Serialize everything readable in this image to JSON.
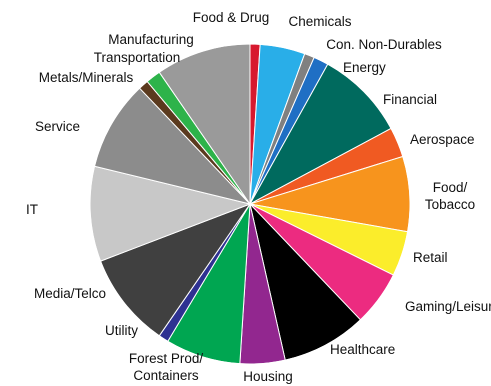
{
  "chart_data": {
    "type": "pie",
    "title": "",
    "legend": "none",
    "start": "top",
    "direction": "clockwise",
    "slices": [
      {
        "label": "Food & Drug",
        "value": 1.0,
        "color": "#d7192e"
      },
      {
        "label": "Chemicals",
        "value": 4.5,
        "color": "#29aee8"
      },
      {
        "label": "Con. Non-Durables",
        "value": 1.0,
        "color": "#808080"
      },
      {
        "label": "Energy",
        "value": 1.5,
        "color": "#1f6fc4"
      },
      {
        "label": "Financial",
        "value": 9.0,
        "color": "#006a5e"
      },
      {
        "label": "Aerospace",
        "value": 3.0,
        "color": "#f05a22"
      },
      {
        "label": "Food/ Tobacco",
        "label_lines": [
          "Food/",
          "Tobacco"
        ],
        "value": 7.5,
        "color": "#f7941d"
      },
      {
        "label": "Retail",
        "value": 4.5,
        "color": "#fbed2b"
      },
      {
        "label": "Gaming/Leisure",
        "value": 5.5,
        "color": "#ec2b80"
      },
      {
        "label": "Healthcare",
        "value": 8.5,
        "color": "#000000"
      },
      {
        "label": "Housing",
        "value": 4.5,
        "color": "#92278f"
      },
      {
        "label": "Forest Prod/ Containers",
        "label_lines": [
          "Forest Prod/",
          "Containers"
        ],
        "value": 7.5,
        "color": "#00a651"
      },
      {
        "label": "Utility",
        "value": 1.0,
        "color": "#2e3192"
      },
      {
        "label": "Media/Telco",
        "value": 9.5,
        "color": "#404040"
      },
      {
        "label": "IT",
        "value": 9.5,
        "color": "#c8c8c8"
      },
      {
        "label": "Service",
        "value": 9.0,
        "color": "#8c8c8c"
      },
      {
        "label": "Metals/Minerals",
        "value": 1.0,
        "color": "#5b3a1e"
      },
      {
        "label": "Transportation",
        "value": 1.5,
        "color": "#2db34a"
      },
      {
        "label": "Manufacturing",
        "value": 9.5,
        "color": "#9a9a9a"
      }
    ]
  }
}
